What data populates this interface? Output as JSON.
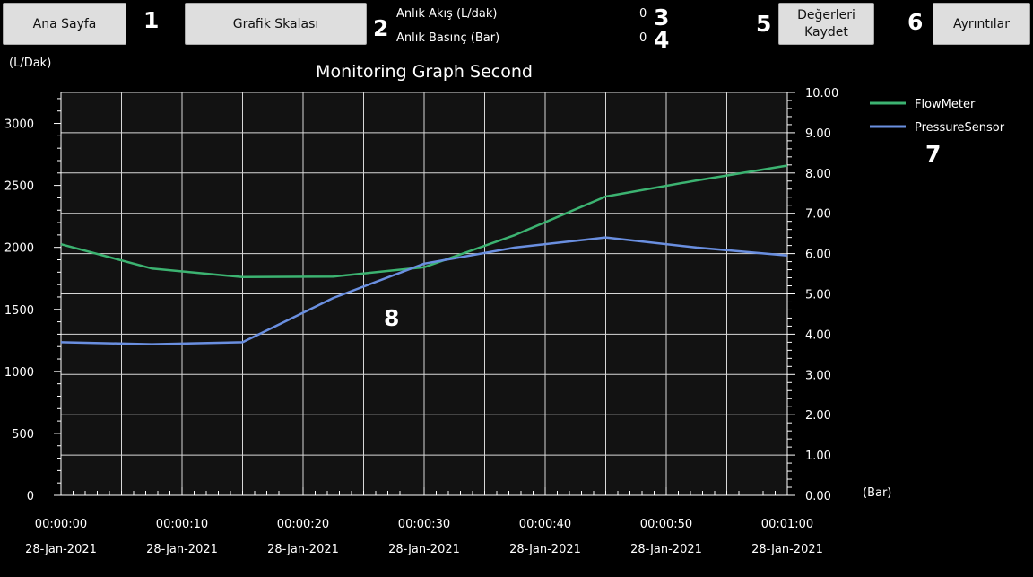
{
  "toolbar": {
    "home_label": "Ana Sayfa",
    "scale_label": "Grafik Skalası",
    "save_label_line1": "Değerleri",
    "save_label_line2": "Kaydet",
    "details_label": "Ayrıntılar"
  },
  "readouts": {
    "flow_label": "Anlık Akış (L/dak)",
    "flow_value": "0",
    "pressure_label": "Anlık Basınç (Bar)",
    "pressure_value": "0"
  },
  "markers": {
    "m1": "1",
    "m2": "2",
    "m3": "3",
    "m4": "4",
    "m5": "5",
    "m6": "6",
    "m7": "7",
    "m8": "8"
  },
  "chart_data": {
    "type": "line",
    "title": "Monitoring Graph Second",
    "ylabel_left": "(L/Dak)",
    "ylabel_right": "(Bar)",
    "x_ticks": [
      {
        "time": "00:00:00",
        "date": "28-Jan-2021"
      },
      {
        "time": "00:00:10",
        "date": "28-Jan-2021"
      },
      {
        "time": "00:00:20",
        "date": "28-Jan-2021"
      },
      {
        "time": "00:00:30",
        "date": "28-Jan-2021"
      },
      {
        "time": "00:00:40",
        "date": "28-Jan-2021"
      },
      {
        "time": "00:00:50",
        "date": "28-Jan-2021"
      },
      {
        "time": "00:01:00",
        "date": "28-Jan-2021"
      }
    ],
    "xlim_seconds": [
      0,
      60
    ],
    "ylim_left": [
      0,
      3250
    ],
    "y_ticks_left": [
      "0",
      "500",
      "1000",
      "1500",
      "2000",
      "2500",
      "3000"
    ],
    "ylim_right": [
      0,
      10
    ],
    "y_ticks_right": [
      "0.00",
      "1.00",
      "2.00",
      "3.00",
      "4.00",
      "5.00",
      "6.00",
      "7.00",
      "8.00",
      "9.00",
      "10.00"
    ],
    "grid": true,
    "legend_position": "top-right",
    "series": [
      {
        "name": "FlowMeter",
        "axis": "left",
        "color": "#3cb371",
        "x": [
          0,
          7.5,
          15,
          22.5,
          30,
          37.5,
          45,
          52.5,
          60
        ],
        "values": [
          2025,
          1830,
          1760,
          1765,
          1840,
          2100,
          2410,
          2540,
          2660
        ]
      },
      {
        "name": "PressureSensor",
        "axis": "right",
        "color": "#6a8fe0",
        "x": [
          0,
          7.5,
          15,
          22.5,
          30,
          37.5,
          45,
          52.5,
          60
        ],
        "values": [
          3.8,
          3.75,
          3.8,
          4.9,
          5.75,
          6.15,
          6.4,
          6.15,
          5.95
        ]
      }
    ]
  }
}
